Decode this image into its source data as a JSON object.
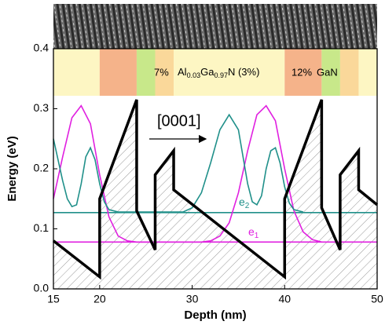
{
  "chart_data": {
    "type": "line",
    "xlabel": "Depth (nm)",
    "ylabel": "Energy (eV)",
    "xlim": [
      15,
      50
    ],
    "ylim": [
      0,
      0.4
    ],
    "xticks": [
      15,
      20,
      30,
      40,
      50
    ],
    "yticks": [
      {
        "value": 0,
        "label": "0.0"
      },
      0.1,
      0.2,
      0.3,
      0.4
    ],
    "layers": [
      {
        "start": 15,
        "end": 20,
        "color": "#fdf6c3"
      },
      {
        "start": 20,
        "end": 24,
        "color": "#f5b38a"
      },
      {
        "start": 24,
        "end": 26,
        "color": "#c8e88a"
      },
      {
        "start": 26,
        "end": 28,
        "color": "#fad89a"
      },
      {
        "start": 28,
        "end": 40,
        "color": "#fdf6c3"
      },
      {
        "start": 40,
        "end": 44,
        "color": "#f5b38a"
      },
      {
        "start": 44,
        "end": 46,
        "color": "#c8e88a"
      },
      {
        "start": 46,
        "end": 48,
        "color": "#fad89a"
      },
      {
        "start": 48,
        "end": 50,
        "color": "#fdf6c3"
      }
    ],
    "layer_labels": {
      "first": "7%",
      "al": "Al",
      "al_sub": "0.03",
      "ga": "Ga",
      "ga_sub": "0.97",
      "n": "N (3%)",
      "second": "12%",
      "gan": "GaN"
    },
    "annotations": {
      "direction": "[0001]",
      "e2": "e",
      "e2_sub": "2",
      "e1": "e",
      "e1_sub": "1"
    },
    "series": [
      {
        "color": "#000000",
        "x": [
          15,
          20,
          20,
          24,
          24,
          26,
          26,
          28,
          28,
          40,
          40,
          44,
          44,
          46,
          46,
          48,
          48,
          50
        ],
        "values": [
          0.08,
          0.02,
          0.15,
          0.315,
          0.13,
          0.065,
          0.19,
          0.23,
          0.165,
          0.02,
          0.15,
          0.315,
          0.135,
          0.065,
          0.19,
          0.23,
          0.165,
          0.14
        ]
      },
      {
        "color": "#e020e0",
        "x": [
          15,
          50
        ],
        "values": [
          0.078,
          0.078
        ]
      },
      {
        "color": "#20908a",
        "x": [
          15,
          50
        ],
        "values": [
          0.127,
          0.127
        ]
      },
      {
        "color": "#e020e0",
        "x": [
          15,
          16,
          17,
          18,
          19,
          20,
          21,
          22,
          23,
          24,
          31,
          32,
          33,
          34,
          35,
          36,
          37,
          38,
          39,
          40,
          41,
          42,
          43,
          44
        ],
        "values": [
          0.15,
          0.22,
          0.285,
          0.305,
          0.275,
          0.19,
          0.12,
          0.088,
          0.08,
          0.078,
          0.078,
          0.08,
          0.088,
          0.11,
          0.16,
          0.23,
          0.29,
          0.305,
          0.28,
          0.2,
          0.13,
          0.095,
          0.082,
          0.078
        ]
      },
      {
        "color": "#20908a",
        "x": [
          15,
          15.5,
          16,
          16.5,
          17,
          17.5,
          18,
          18.5,
          19,
          19.5,
          20,
          20.5,
          21,
          22,
          29,
          30,
          31,
          32,
          33,
          34,
          35,
          35.5,
          36,
          36.5,
          37,
          37.5,
          38,
          38.5,
          39,
          39.5,
          40,
          40.5,
          41,
          42
        ],
        "values": [
          0.25,
          0.215,
          0.18,
          0.15,
          0.137,
          0.14,
          0.175,
          0.22,
          0.235,
          0.215,
          0.175,
          0.145,
          0.132,
          0.128,
          0.128,
          0.135,
          0.16,
          0.21,
          0.265,
          0.29,
          0.265,
          0.22,
          0.175,
          0.145,
          0.14,
          0.155,
          0.2,
          0.23,
          0.235,
          0.21,
          0.17,
          0.143,
          0.132,
          0.128
        ]
      }
    ]
  }
}
